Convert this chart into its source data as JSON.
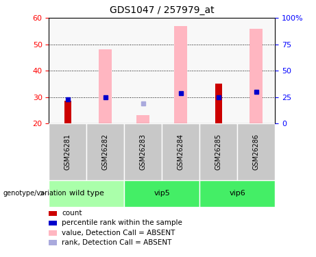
{
  "title": "GDS1047 / 257979_at",
  "samples": [
    "GSM26281",
    "GSM26282",
    "GSM26283",
    "GSM26284",
    "GSM26285",
    "GSM26286"
  ],
  "ylim_left": [
    20,
    60
  ],
  "ylim_right": [
    0,
    100
  ],
  "yticks_left": [
    20,
    30,
    40,
    50,
    60
  ],
  "ytick_labels_right": [
    "0",
    "25",
    "50",
    "75",
    "100%"
  ],
  "pink_bars": {
    "GSM26281": null,
    "GSM26282": 48,
    "GSM26283": 23,
    "GSM26284": 57,
    "GSM26285": null,
    "GSM26286": 56
  },
  "red_bars": {
    "GSM26281": 28.5,
    "GSM26282": null,
    "GSM26283": null,
    "GSM26284": null,
    "GSM26285": 35,
    "GSM26286": null
  },
  "blue_squares": {
    "GSM26281": 29,
    "GSM26282": 30,
    "GSM26283": null,
    "GSM26284": 31.5,
    "GSM26285": 30,
    "GSM26286": 32
  },
  "light_blue_squares": {
    "GSM26281": null,
    "GSM26282": null,
    "GSM26283": 27.5,
    "GSM26284": null,
    "GSM26285": null,
    "GSM26286": null
  },
  "pink_color": "#FFB6C1",
  "red_color": "#CC0000",
  "blue_color": "#0000CC",
  "light_blue_color": "#AAAADD",
  "group_configs": [
    {
      "name": "wild type",
      "start": 0,
      "end": 2,
      "color": "#AAFFAA"
    },
    {
      "name": "vip5",
      "start": 2,
      "end": 4,
      "color": "#44EE66"
    },
    {
      "name": "vip6",
      "start": 4,
      "end": 6,
      "color": "#44EE66"
    }
  ],
  "legend_items": [
    {
      "color": "#CC0000",
      "label": "count"
    },
    {
      "color": "#0000CC",
      "label": "percentile rank within the sample"
    },
    {
      "color": "#FFB6C1",
      "label": "value, Detection Call = ABSENT"
    },
    {
      "color": "#AAAADD",
      "label": "rank, Detection Call = ABSENT"
    }
  ]
}
